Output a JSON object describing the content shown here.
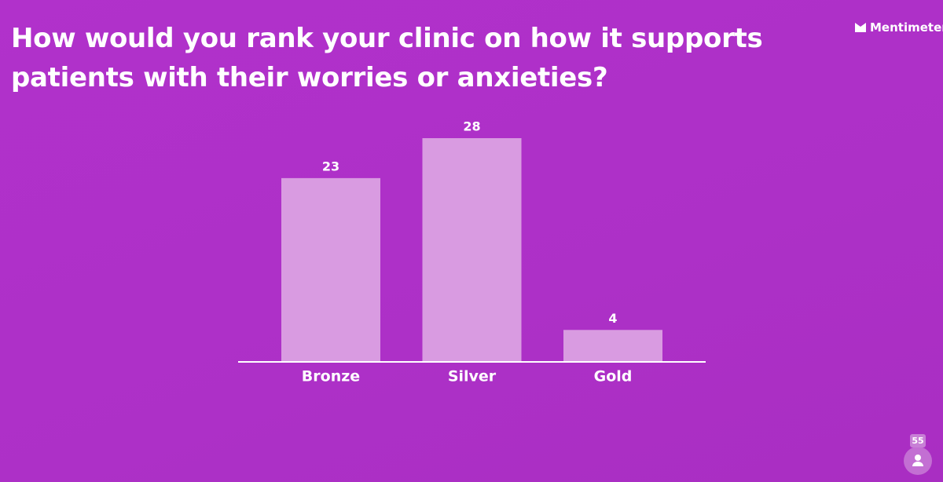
{
  "brand": "Mentimeter",
  "participants": 55,
  "chart_data": {
    "type": "bar",
    "title": "How would you rank your clinic on how it supports patients with their worries or anxieties?",
    "categories": [
      "Bronze",
      "Silver",
      "Gold"
    ],
    "values": [
      23,
      28,
      4
    ],
    "color": "#d99be1"
  }
}
